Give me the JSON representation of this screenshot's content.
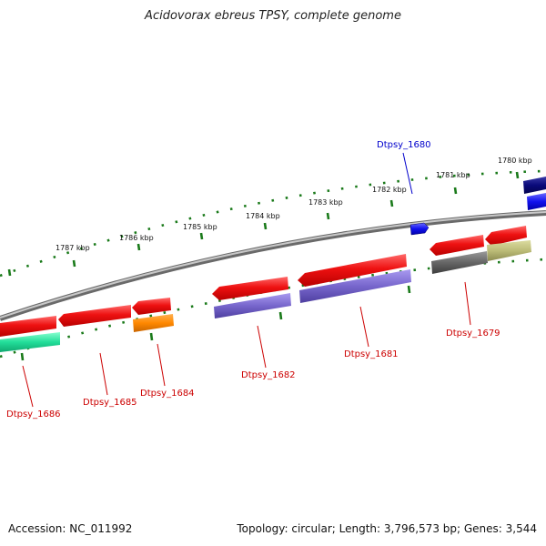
{
  "title": "Acidovorax ebreus TPSY, complete genome",
  "footer": {
    "accession": "Accession: NC_011992",
    "summary": "Topology: circular; Length: 3,796,573 bp; Genes: 3,544"
  },
  "kbp_labels": [
    "1787 kbp",
    "1786 kbp",
    "1785 kbp",
    "1784 kbp",
    "1783 kbp",
    "1782 kbp",
    "1781 kbp",
    "1780 kbp"
  ],
  "genes": [
    {
      "id": "dtpsy_1686",
      "label": "Dtpsy_1686",
      "label_color": "#cc0000"
    },
    {
      "id": "dtpsy_1685",
      "label": "Dtpsy_1685",
      "label_color": "#cc0000"
    },
    {
      "id": "dtpsy_1684",
      "label": "Dtpsy_1684",
      "label_color": "#cc0000"
    },
    {
      "id": "dtpsy_1682",
      "label": "Dtpsy_1682",
      "label_color": "#cc0000"
    },
    {
      "id": "dtpsy_1681",
      "label": "Dtpsy_1681",
      "label_color": "#cc0000"
    },
    {
      "id": "dtpsy_1680",
      "label": "Dtpsy_1680",
      "label_color": "#0000cc"
    },
    {
      "id": "dtpsy_1679",
      "label": "Dtpsy_1679",
      "label_color": "#cc0000"
    }
  ],
  "colors": {
    "backbone": "#8a8a8a",
    "tick": "#1a7a1a",
    "gene_red": "#ee1111",
    "gene_blue": "#1111ee",
    "gene_navy": "#0a0a7a",
    "cog_purple": "#7766cc",
    "cog_orange": "#ff8800",
    "cog_green": "#22dd99",
    "cog_gray": "#666666",
    "cog_khaki": "#bbbb77"
  }
}
